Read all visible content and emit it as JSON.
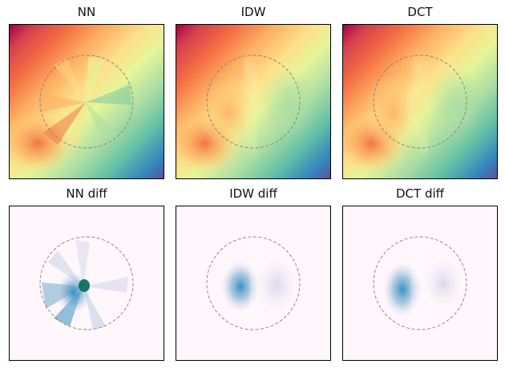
{
  "chart_data": [
    {
      "type": "heatmap",
      "title": "NN",
      "colormap": "Spectral",
      "xticks": false,
      "yticks": false,
      "mask": "dashed circle",
      "overlay": {
        "shape": "circle",
        "style": "dashed",
        "color": "#808080"
      }
    },
    {
      "type": "heatmap",
      "title": "IDW",
      "colormap": "Spectral",
      "xticks": false,
      "yticks": false,
      "mask": "dashed circle",
      "overlay": {
        "shape": "circle",
        "style": "dashed",
        "color": "#808080"
      }
    },
    {
      "type": "heatmap",
      "title": "DCT",
      "colormap": "Spectral",
      "xticks": false,
      "yticks": false,
      "mask": "dashed circle",
      "overlay": {
        "shape": "circle",
        "style": "dashed",
        "color": "#808080"
      }
    },
    {
      "type": "heatmap",
      "title": "NN diff",
      "colormap": "PuBuGn",
      "xticks": false,
      "yticks": false,
      "overlay": {
        "shape": "circle",
        "style": "dashed",
        "color": "#808080"
      }
    },
    {
      "type": "heatmap",
      "title": "IDW diff",
      "colormap": "PuBu",
      "xticks": false,
      "yticks": false,
      "overlay": {
        "shape": "circle",
        "style": "dashed",
        "color": "#808080"
      }
    },
    {
      "type": "heatmap",
      "title": "DCT diff",
      "colormap": "PuBu",
      "xticks": false,
      "yticks": false,
      "overlay": {
        "shape": "circle",
        "style": "dashed",
        "color": "#808080"
      }
    }
  ],
  "colors": {
    "spectral_red": "#9e0142",
    "spectral_orange": "#f46d43",
    "spectral_yellow": "#fee08b",
    "spectral_light": "#e6f598",
    "spectral_green": "#66c2a5",
    "spectral_blue": "#3288bd",
    "spectral_purple": "#5e4fa2",
    "diff_bg": "#fff7fb",
    "diff_blue": "#2b8cbe",
    "diff_teal": "#016c59",
    "diff_lavender": "#d0d1e6",
    "circle": "#808080"
  }
}
